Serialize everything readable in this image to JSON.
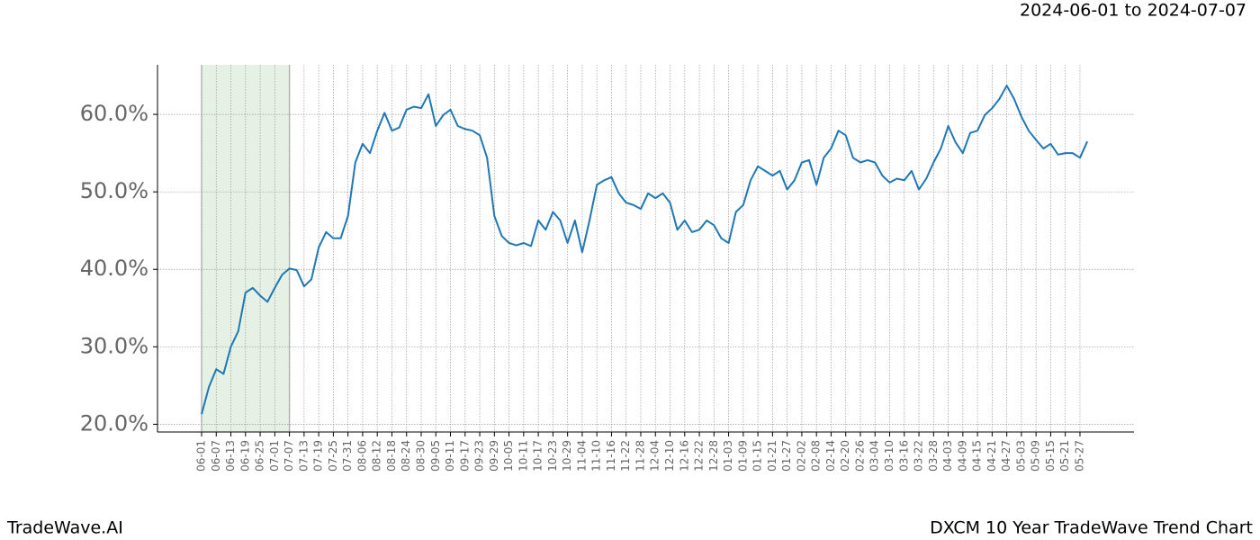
{
  "header": {
    "date_range": "2024-06-01 to 2024-07-07"
  },
  "footer": {
    "brand": "TradeWave.AI",
    "chart_name": "DXCM 10 Year TradeWave Trend Chart"
  },
  "chart_data": {
    "type": "line",
    "categories": [
      "06-01",
      null,
      "06-07",
      null,
      "06-13",
      null,
      "06-19",
      null,
      "06-25",
      null,
      "07-01",
      null,
      "07-07",
      null,
      "07-13",
      null,
      "07-19",
      null,
      "07-25",
      null,
      "07-31",
      null,
      "08-06",
      null,
      "08-12",
      null,
      "08-18",
      null,
      "08-24",
      null,
      "08-30",
      null,
      "09-05",
      null,
      "09-11",
      null,
      "09-17",
      null,
      "09-23",
      null,
      "09-29",
      null,
      "10-05",
      null,
      "10-11",
      null,
      "10-17",
      null,
      "10-23",
      null,
      "10-29",
      null,
      "11-04",
      null,
      "11-10",
      null,
      "11-16",
      null,
      "11-22",
      null,
      "11-28",
      null,
      "12-04",
      null,
      "12-10",
      null,
      "12-16",
      null,
      "12-22",
      null,
      "12-28",
      null,
      "01-03",
      null,
      "01-09",
      null,
      "01-15",
      null,
      "01-21",
      null,
      "01-27",
      null,
      "02-02",
      null,
      "02-08",
      null,
      "02-14",
      null,
      "02-20",
      null,
      "02-26",
      null,
      "03-04",
      null,
      "03-10",
      null,
      "03-16",
      null,
      "03-22",
      null,
      "03-28",
      null,
      "04-03",
      null,
      "04-09",
      null,
      "04-15",
      null,
      "04-21",
      null,
      "04-27",
      null,
      "05-03",
      null,
      "05-09",
      null,
      "05-15",
      null,
      "05-21",
      null,
      "05-27",
      null
    ],
    "values": [
      21.3,
      24.8,
      27.1,
      26.5,
      30,
      32,
      37,
      37.6,
      36.6,
      35.8,
      37.6,
      39.3,
      40.1,
      39.9,
      37.8,
      38.7,
      42.8,
      44.8,
      44,
      44,
      46.9,
      53.8,
      56.2,
      55,
      57.9,
      60.2,
      57.9,
      58.3,
      60.6,
      61,
      60.8,
      62.6,
      58.5,
      59.9,
      60.6,
      58.5,
      58.1,
      57.9,
      57.3,
      54.4,
      46.9,
      44.3,
      43.4,
      43.1,
      43.4,
      43,
      46.3,
      45.1,
      47.4,
      46.3,
      43.4,
      46.3,
      42.2,
      46.3,
      50.9,
      51.5,
      51.9,
      49.8,
      48.6,
      48.3,
      47.8,
      49.8,
      49.2,
      49.8,
      48.6,
      45.1,
      46.3,
      44.8,
      45.1,
      46.3,
      45.7,
      44,
      43.4,
      47.4,
      48.3,
      51.5,
      53.3,
      52.7,
      52.1,
      52.7,
      50.3,
      51.5,
      53.8,
      54.1,
      50.9,
      54.4,
      55.6,
      57.9,
      57.3,
      54.4,
      53.8,
      54.1,
      53.8,
      52.1,
      51.2,
      51.7,
      51.5,
      52.7,
      50.3,
      51.7,
      53.8,
      55.6,
      58.5,
      56.4,
      55,
      57.6,
      57.9,
      59.9,
      60.8,
      62,
      63.7,
      62,
      59.7,
      57.9,
      56.7,
      55.6,
      56.2,
      54.8,
      55,
      55,
      54.4,
      56.5
    ],
    "color": "#1f77b4",
    "shade": [
      "06-01",
      "07-07"
    ],
    "ylim": [
      19,
      66.4
    ],
    "yticks": [
      {
        "value": 20,
        "label": "20.0%"
      },
      {
        "value": 30,
        "label": "30.0%"
      },
      {
        "value": 40,
        "label": "40.0%"
      },
      {
        "value": 50,
        "label": "50.0%"
      },
      {
        "value": 60,
        "label": "60.0%"
      }
    ],
    "grid": true
  }
}
